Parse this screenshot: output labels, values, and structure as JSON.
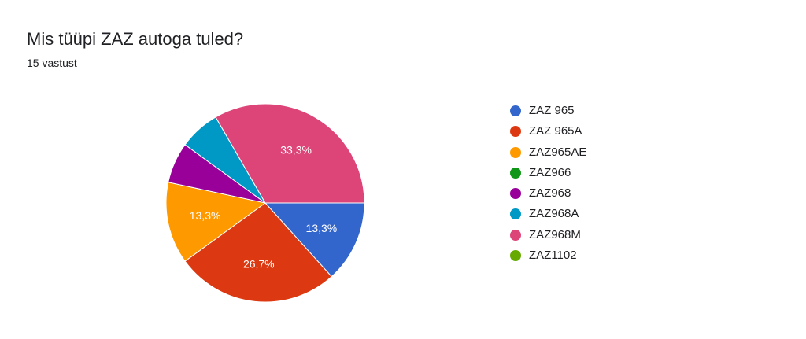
{
  "header": {
    "title": "Mis tüüpi ZAZ autoga tuled?",
    "subtitle": "15 vastust"
  },
  "chart_data": {
    "type": "pie",
    "total_responses": 15,
    "slices": [
      {
        "label": "ZAZ 965",
        "count": 2,
        "percent": "13,3%",
        "color": "#3366cc"
      },
      {
        "label": "ZAZ 965A",
        "count": 4,
        "percent": "26,7%",
        "color": "#dc3912"
      },
      {
        "label": "ZAZ965AE",
        "count": 2,
        "percent": "13,3%",
        "color": "#ff9900"
      },
      {
        "label": "ZAZ966",
        "count": 0,
        "percent": "",
        "color": "#109618"
      },
      {
        "label": "ZAZ968",
        "count": 1,
        "percent": "",
        "color": "#990099"
      },
      {
        "label": "ZAZ968A",
        "count": 1,
        "percent": "",
        "color": "#0099c6"
      },
      {
        "label": "ZAZ968M",
        "count": 5,
        "percent": "33,3%",
        "color": "#dd4477"
      },
      {
        "label": "ZAZ1102",
        "count": 0,
        "percent": "",
        "color": "#66aa00"
      }
    ],
    "legend_position": "right"
  }
}
